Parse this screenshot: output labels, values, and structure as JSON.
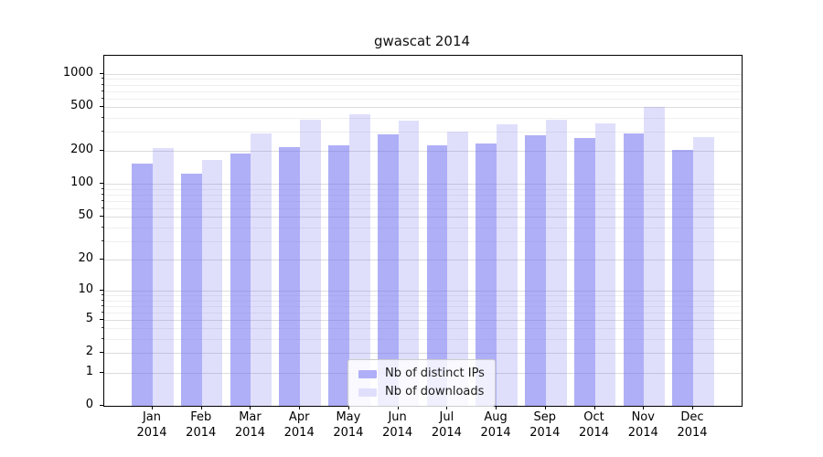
{
  "chart_data": {
    "type": "bar",
    "title": "gwascat 2014",
    "xlabel": "",
    "ylabel": "",
    "yscale": "log1p",
    "yticks": [
      0,
      1,
      2,
      5,
      10,
      20,
      50,
      100,
      200,
      500,
      1000
    ],
    "yticks_minor": [
      3,
      4,
      6,
      7,
      8,
      9,
      30,
      40,
      60,
      70,
      80,
      90,
      300,
      400,
      600,
      700,
      800,
      900
    ],
    "ylim": [
      0,
      1460
    ],
    "grid": "on",
    "legend_position": "lower center",
    "categories": [
      "Jan",
      "Feb",
      "Mar",
      "Apr",
      "May",
      "Jun",
      "Jul",
      "Aug",
      "Sep",
      "Oct",
      "Nov",
      "Dec"
    ],
    "year_label": "2014",
    "series": [
      {
        "name": "Nb of distinct IPs",
        "color": "rgba(110,110,240,0.55)",
        "color_hex_on_white": "#afaff7",
        "values": [
          153,
          124,
          190,
          217,
          227,
          286,
          226,
          233,
          278,
          261,
          287,
          206
        ]
      },
      {
        "name": "Nb of downloads",
        "color": "rgba(110,110,240,0.22)",
        "color_hex_on_white": "#dfdffc",
        "values": [
          215,
          165,
          291,
          383,
          432,
          377,
          298,
          351,
          384,
          354,
          505,
          269
        ]
      }
    ]
  }
}
